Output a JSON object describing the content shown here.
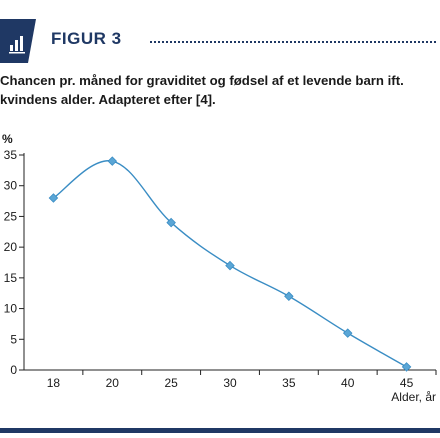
{
  "figure": {
    "label": "FIGUR 3",
    "caption": "Chancen pr. måned for graviditet og fødsel af et levende barn ift. kvindens alder. Adapteret efter [4]."
  },
  "colors": {
    "brand": "#1f3864",
    "series": "#3a8dc4",
    "marker": "#5aa6d6",
    "axis": "#222222"
  },
  "chart_data": {
    "type": "line",
    "title": "",
    "xlabel": "Alder, år",
    "ylabel": "%",
    "ylim": [
      0,
      35
    ],
    "yticks": [
      0,
      5,
      10,
      15,
      20,
      25,
      30,
      35
    ],
    "xticks": [
      "18",
      "20",
      "25",
      "30",
      "35",
      "40",
      "45"
    ],
    "grid": false,
    "series": [
      {
        "x": [
          18,
          20,
          25,
          30,
          35,
          40,
          45
        ],
        "values": [
          28,
          34,
          24,
          17,
          12,
          6,
          0.5
        ]
      }
    ]
  }
}
